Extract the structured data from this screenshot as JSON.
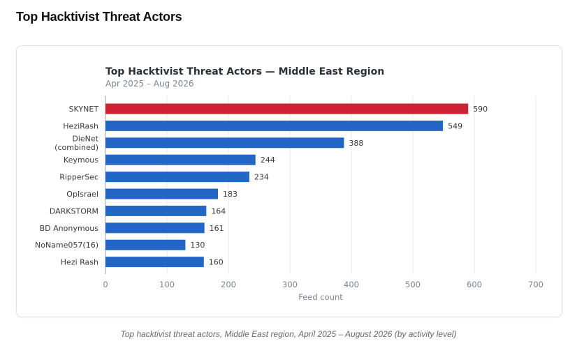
{
  "page": {
    "heading": "Top Hacktivist Threat Actors",
    "caption": "Top hacktivist threat actors, Middle East region, April 2025 – August 2026 (by activity level)"
  },
  "chart_data": {
    "type": "bar",
    "orientation": "horizontal",
    "title": "Top Hacktivist Threat Actors — Middle East Region",
    "subtitle": "Apr 2025 – Aug 2026",
    "xlabel": "Feed count",
    "ylabel": "",
    "xlim": [
      0,
      700
    ],
    "xticks": [
      0,
      100,
      200,
      300,
      400,
      500,
      600,
      700
    ],
    "grid": true,
    "legend": "none",
    "categories": [
      [
        "SKYNET"
      ],
      [
        "HeziRash"
      ],
      [
        "DieNet",
        "(combined)"
      ],
      [
        "Keymous"
      ],
      [
        "RipperSec"
      ],
      [
        "OpIsrael"
      ],
      [
        "DARKSTORM"
      ],
      [
        "BD Anonymous"
      ],
      [
        "NoName057(16)"
      ],
      [
        "Hezi Rash"
      ]
    ],
    "values": [
      590,
      549,
      388,
      244,
      234,
      183,
      164,
      161,
      130,
      160
    ],
    "colors": [
      "#cc2233",
      "#2466c6",
      "#2466c6",
      "#2466c6",
      "#2466c6",
      "#2466c6",
      "#2466c6",
      "#2466c6",
      "#2466c6",
      "#2466c6"
    ]
  }
}
